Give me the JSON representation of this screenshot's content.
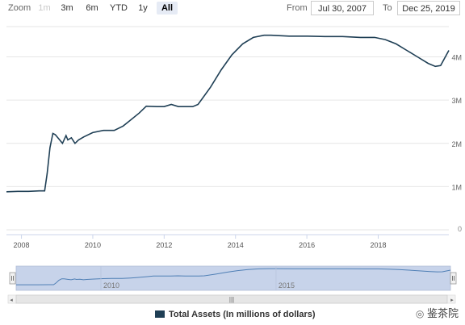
{
  "toolbar": {
    "zoom_label": "Zoom",
    "buttons": [
      "1m",
      "3m",
      "6m",
      "YTD",
      "1y",
      "All"
    ],
    "selected": "All",
    "from_label": "From",
    "from_value": "Jul 30, 2007",
    "to_label": "To",
    "to_value": "Dec 25, 2019"
  },
  "colors": {
    "line": "#1f3f55",
    "navigator_fill": "#c7d3ea",
    "gridline": "#e6e6e6"
  },
  "watermark": "鉴茶院",
  "chart_data": {
    "type": "line",
    "title": "",
    "xlabel": "",
    "ylabel": "",
    "y_ticks": [
      "1M",
      "2M",
      "3M",
      "4M"
    ],
    "ylim": [
      0,
      4700000
    ],
    "x_ticks": [
      "2008",
      "2010",
      "2012",
      "2014",
      "2016",
      "2018"
    ],
    "navigator_ticks": [
      "2010",
      "2015"
    ],
    "xlim": [
      2007.58,
      2019.98
    ],
    "grid": true,
    "legend": "bottom-center",
    "series": [
      {
        "name": "Total Assets (In millions of dollars)",
        "x": [
          2007.58,
          2007.9,
          2008.2,
          2008.5,
          2008.65,
          2008.72,
          2008.8,
          2008.88,
          2008.95,
          2009.05,
          2009.15,
          2009.25,
          2009.3,
          2009.4,
          2009.5,
          2009.6,
          2009.75,
          2010.0,
          2010.3,
          2010.6,
          2010.85,
          2011.0,
          2011.3,
          2011.5,
          2011.8,
          2012.0,
          2012.2,
          2012.4,
          2012.6,
          2012.8,
          2012.95,
          2013.3,
          2013.6,
          2013.9,
          2014.2,
          2014.5,
          2014.8,
          2015.0,
          2015.5,
          2016.0,
          2016.5,
          2017.0,
          2017.5,
          2017.9,
          2018.2,
          2018.5,
          2018.8,
          2019.1,
          2019.4,
          2019.6,
          2019.75,
          2019.98
        ],
        "y": [
          880000,
          890000,
          890000,
          900000,
          900000,
          1300000,
          1900000,
          2230000,
          2200000,
          2100000,
          2000000,
          2180000,
          2080000,
          2130000,
          2000000,
          2080000,
          2150000,
          2250000,
          2300000,
          2300000,
          2400000,
          2500000,
          2700000,
          2860000,
          2850000,
          2850000,
          2900000,
          2850000,
          2850000,
          2850000,
          2900000,
          3300000,
          3700000,
          4050000,
          4300000,
          4450000,
          4500000,
          4500000,
          4480000,
          4480000,
          4470000,
          4470000,
          4450000,
          4450000,
          4400000,
          4300000,
          4150000,
          4000000,
          3850000,
          3780000,
          3800000,
          4150000
        ]
      }
    ]
  }
}
